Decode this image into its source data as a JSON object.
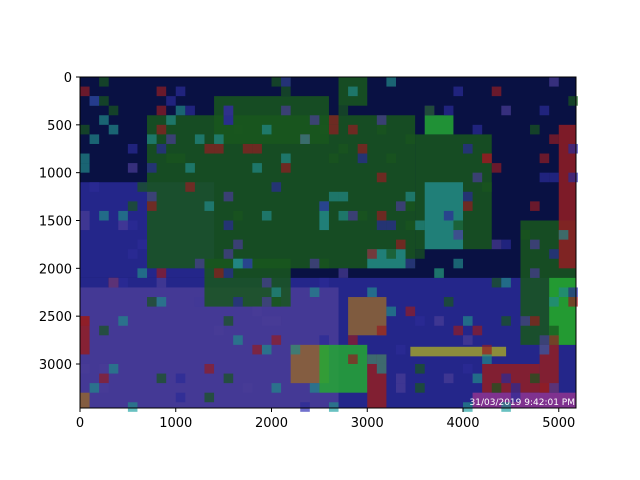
{
  "chart_data": {
    "type": "heatmap",
    "image_extent": {
      "x": [
        0,
        5180
      ],
      "y": [
        3460,
        0
      ]
    },
    "xlim": [
      0,
      5180
    ],
    "ylim": [
      3460,
      0
    ],
    "xticks": [
      0,
      1000,
      2000,
      3000,
      4000,
      5000
    ],
    "yticks": [
      0,
      500,
      1000,
      1500,
      2000,
      2500,
      3000
    ],
    "xtick_labels": [
      "0",
      "1000",
      "2000",
      "3000",
      "4000",
      "5000"
    ],
    "ytick_labels": [
      "0",
      "500",
      "1000",
      "1500",
      "2000",
      "2500",
      "3000"
    ],
    "grid": false,
    "cell_size": 100,
    "grid_cols": 52,
    "grid_rows": 35,
    "timestamp_text": "31/03/2019 9:42:01 PM",
    "class_colors": {
      "base": "#0b1552",
      "blue": "#3434b8",
      "green": "#1f6a25",
      "bright_green": "#2ecc40",
      "cyan": "#2aa6a6",
      "red": "#b3242b",
      "orange": "#b07a3e",
      "purple": "#5a4ab8",
      "yellow": "#c2c23a",
      "magenta": "#b040b0"
    },
    "regions": [
      {
        "class": "blue",
        "x": [
          0,
          5180
        ],
        "y": [
          2100,
          3460
        ]
      },
      {
        "class": "purple",
        "x": [
          0,
          2700
        ],
        "y": [
          2200,
          3460
        ]
      },
      {
        "class": "blue",
        "x": [
          0,
          1400
        ],
        "y": [
          1100,
          2100
        ]
      },
      {
        "class": "green",
        "x": [
          700,
          3500
        ],
        "y": [
          400,
          2000
        ]
      },
      {
        "class": "green",
        "x": [
          1400,
          2600
        ],
        "y": [
          200,
          700
        ]
      },
      {
        "class": "green",
        "x": [
          3500,
          4300
        ],
        "y": [
          600,
          1800
        ]
      },
      {
        "class": "green",
        "x": [
          1300,
          2200
        ],
        "y": [
          1900,
          2400
        ]
      },
      {
        "class": "green",
        "x": [
          4600,
          5180
        ],
        "y": [
          1500,
          2800
        ]
      },
      {
        "class": "green",
        "x": [
          2700,
          3000
        ],
        "y": [
          0,
          300
        ]
      },
      {
        "class": "cyan",
        "x": [
          3600,
          4000
        ],
        "y": [
          1100,
          1800
        ]
      },
      {
        "class": "cyan",
        "x": [
          2500,
          2600
        ],
        "y": [
          1300,
          1600
        ]
      },
      {
        "class": "cyan",
        "x": [
          3000,
          3400
        ],
        "y": [
          1800,
          2000
        ]
      },
      {
        "class": "orange",
        "x": [
          2200,
          2600
        ],
        "y": [
          2800,
          3200
        ]
      },
      {
        "class": "orange",
        "x": [
          2800,
          3200
        ],
        "y": [
          2300,
          2700
        ]
      },
      {
        "class": "bright_green",
        "x": [
          2500,
          3000
        ],
        "y": [
          2800,
          3300
        ]
      },
      {
        "class": "bright_green",
        "x": [
          3600,
          3900
        ],
        "y": [
          400,
          600
        ]
      },
      {
        "class": "bright_green",
        "x": [
          4900,
          5180
        ],
        "y": [
          2100,
          2800
        ]
      },
      {
        "class": "red",
        "x": [
          5000,
          5180
        ],
        "y": [
          500,
          2000
        ]
      },
      {
        "class": "red",
        "x": [
          4200,
          4800
        ],
        "y": [
          3000,
          3300
        ]
      },
      {
        "class": "red",
        "x": [
          0,
          100
        ],
        "y": [
          2500,
          2900
        ]
      },
      {
        "class": "red",
        "x": [
          3000,
          3200
        ],
        "y": [
          2900,
          3460
        ]
      },
      {
        "class": "red",
        "x": [
          4800,
          5000
        ],
        "y": [
          2800,
          3300
        ]
      },
      {
        "class": "yellow",
        "x": [
          3450,
          4450
        ],
        "y": [
          2820,
          2920
        ]
      },
      {
        "class": "magenta",
        "x": [
          4100,
          5180
        ],
        "y": [
          3300,
          3460
        ]
      },
      {
        "class": "cyan",
        "x": [
          1600,
          1800
        ],
        "y": [
          1900,
          2000
        ]
      },
      {
        "class": "orange",
        "x": [
          0,
          100
        ],
        "y": [
          3300,
          3460
        ]
      }
    ]
  }
}
